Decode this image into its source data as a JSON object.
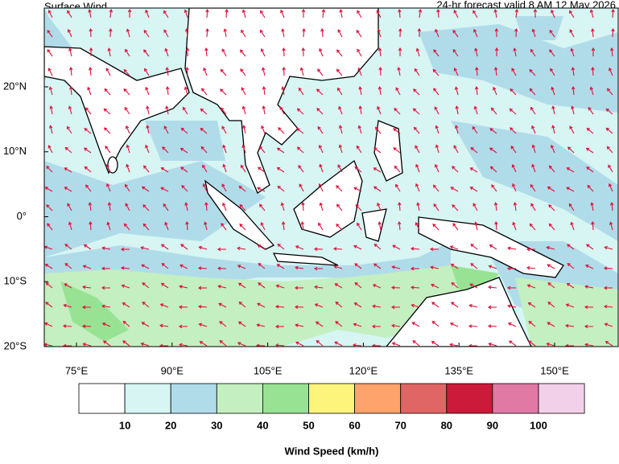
{
  "title": "Surface Wind",
  "subtitle": "24-hr forecast valid 8 AM 12 May 2026",
  "map": {
    "lat_labels": [
      "20°N",
      "10°N",
      "0°",
      "10°S",
      "20°S"
    ],
    "lon_labels": [
      "75°E",
      "90°E",
      "105°E",
      "120°E",
      "135°E",
      "150°E"
    ]
  },
  "colorbar": {
    "colors": [
      "#ffffff",
      "#d6f5f3",
      "#b0dcea",
      "#c4efc0",
      "#98e393",
      "#fdf57b",
      "#fda36b",
      "#e06565",
      "#cc1a3a",
      "#e07aa5",
      "#f2d0ea"
    ],
    "ticks": [
      10,
      20,
      30,
      40,
      50,
      60,
      70,
      80,
      90,
      100
    ],
    "label": "Wind Speed (km/h)"
  }
}
